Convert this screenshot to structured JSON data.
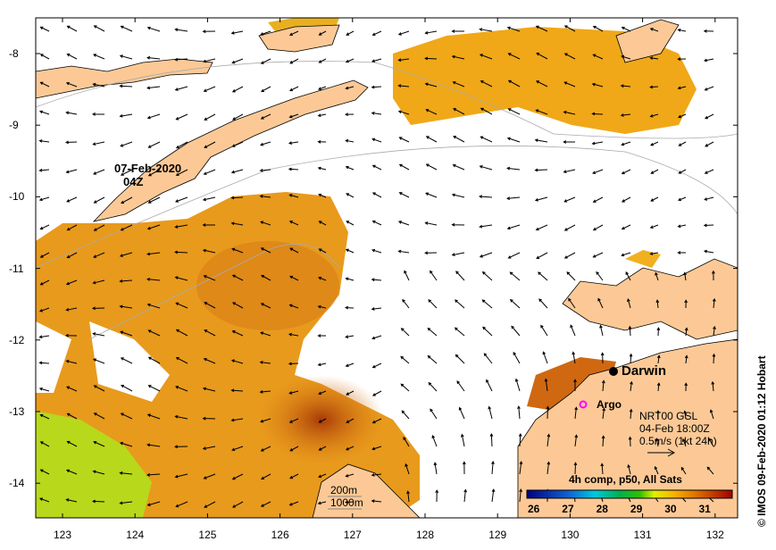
{
  "map": {
    "composite_label": "07-Feb-2020",
    "composite_time": "04Z",
    "city_label": "Darwin",
    "argo_label": "Argo",
    "currents_source": "NRT00 GSL",
    "currents_time": "04-Feb 18:00Z",
    "currents_scale": "0.5m/s (1kt 24h)",
    "depth_contour_1": "200m",
    "depth_contour_2": "1000m",
    "colorbar_title": "4h comp, p50, All Sats",
    "colorbar_ticks": [
      "26",
      "27",
      "28",
      "29",
      "30",
      "31"
    ],
    "colorbar_range": [
      25.8,
      31.8
    ],
    "lon_ticks": [
      "123",
      "124",
      "125",
      "126",
      "127",
      "128",
      "129",
      "130",
      "131",
      "132"
    ],
    "lat_ticks": [
      "-8",
      "-9",
      "-10",
      "-11",
      "-12",
      "-13",
      "-14"
    ],
    "credit": "© IMOS 09-Feb-2020 01:12 Hobart",
    "colors": {
      "land": "#fcc996",
      "sst_mid": "#e89a1c",
      "sst_warm": "#c8600e",
      "argo": "#ff00ff"
    }
  }
}
